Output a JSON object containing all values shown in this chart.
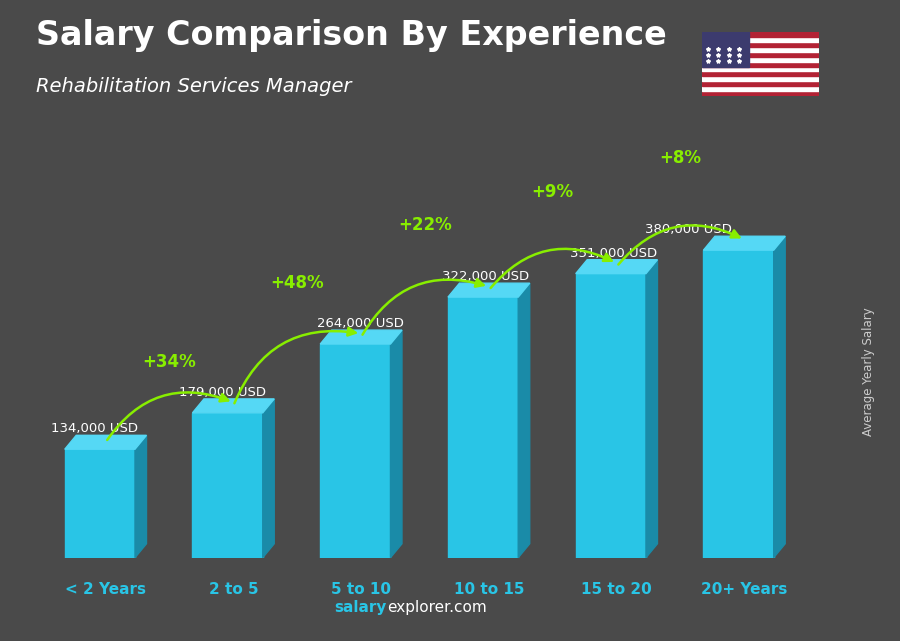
{
  "title": "Salary Comparison By Experience",
  "subtitle": "Rehabilitation Services Manager",
  "categories": [
    "< 2 Years",
    "2 to 5",
    "5 to 10",
    "10 to 15",
    "15 to 20",
    "20+ Years"
  ],
  "values": [
    134000,
    179000,
    264000,
    322000,
    351000,
    380000
  ],
  "salary_labels": [
    "134,000 USD",
    "179,000 USD",
    "264,000 USD",
    "322,000 USD",
    "351,000 USD",
    "380,000 USD"
  ],
  "pct_labels": [
    "+34%",
    "+48%",
    "+22%",
    "+9%",
    "+8%"
  ],
  "bar_color_face": "#29C5E6",
  "bar_color_dark": "#1A8BA8",
  "bar_color_top": "#55D8F5",
  "bg_color": "#4a4a4a",
  "title_color": "#FFFFFF",
  "subtitle_color": "#FFFFFF",
  "salary_label_color": "#FFFFFF",
  "pct_color": "#88EE00",
  "xtick_color": "#29C5E6",
  "footer_salary_color": "#29C5E6",
  "footer_explorer_color": "#FFFFFF",
  "ylabel_color": "#CCCCCC",
  "ylabel": "Average Yearly Salary",
  "footer_bold": "salary",
  "footer_normal": "explorer.com",
  "figsize": [
    9.0,
    6.41
  ],
  "dpi": 100,
  "plot_max": 430000
}
